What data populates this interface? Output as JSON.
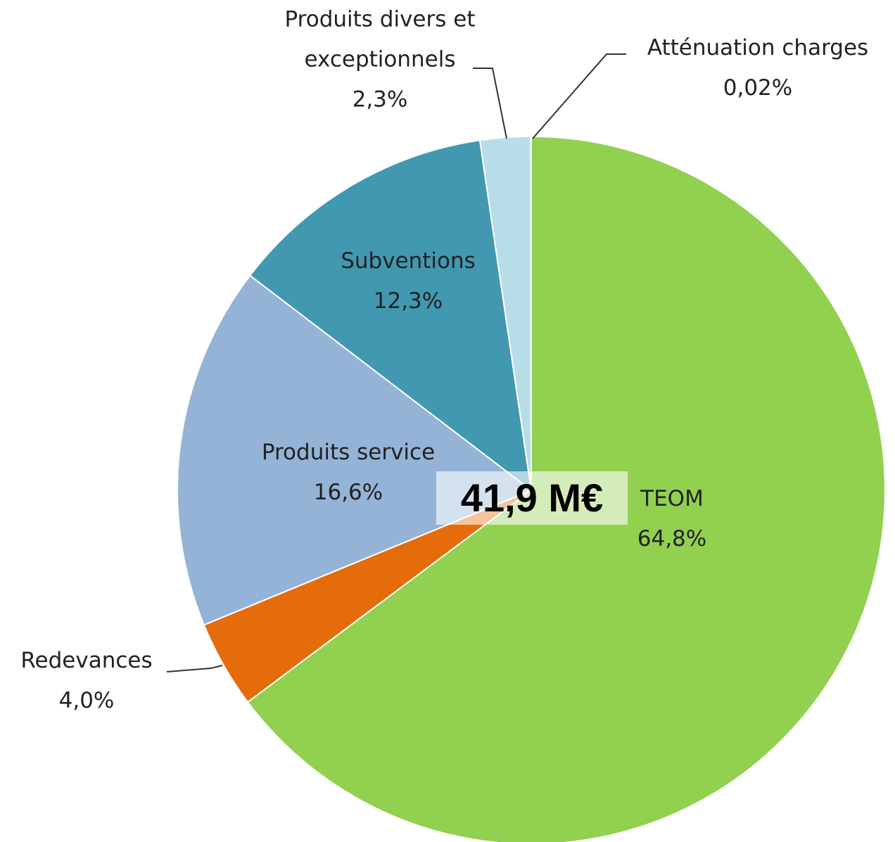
{
  "chart_data": {
    "type": "pie",
    "categories": [
      "TEOM",
      "Redevances",
      "Produits service",
      "Subventions",
      "Produits divers et exceptionnels",
      "Atténuation charges"
    ],
    "values": [
      64.8,
      4.0,
      16.6,
      12.3,
      2.3,
      0.02
    ],
    "value_labels": [
      "64,8%",
      "4,0%",
      "16,6%",
      "12,3%",
      "2,3%",
      "0,02%"
    ],
    "colors": [
      "#92d050",
      "#e46c0a",
      "#95b3d7",
      "#4198b0",
      "#b7dde8",
      "#fac090"
    ],
    "center_label": "41,9 M€"
  }
}
